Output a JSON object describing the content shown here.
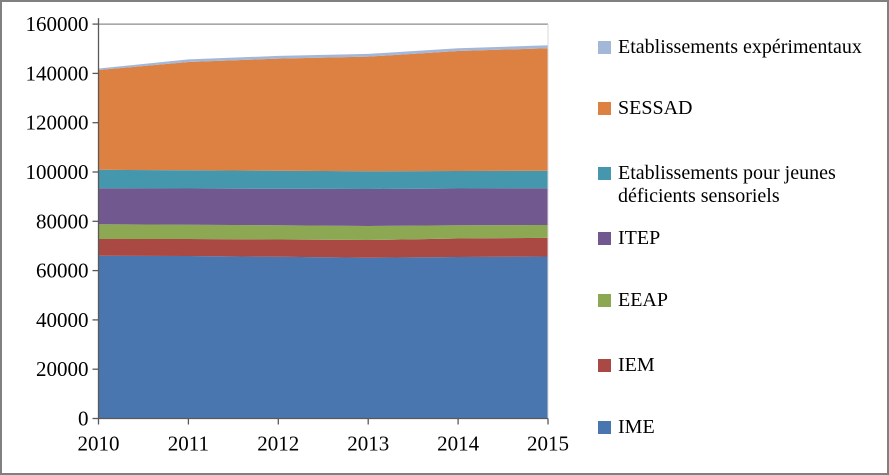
{
  "chart_data": {
    "type": "area",
    "stacked": true,
    "title": "",
    "xlabel": "",
    "ylabel": "",
    "x": [
      "2010",
      "2011",
      "2012",
      "2013",
      "2014",
      "2015"
    ],
    "yticks": [
      "0",
      "20000",
      "40000",
      "60000",
      "80000",
      "100000",
      "120000",
      "140000",
      "160000"
    ],
    "ylim": [
      0,
      160000
    ],
    "grid": false,
    "legend_position": "right",
    "series": [
      {
        "name": "IME",
        "color": "#4976AE",
        "values": [
          66000,
          65900,
          65600,
          65200,
          65500,
          65700
        ]
      },
      {
        "name": "IEM",
        "color": "#AA4844",
        "values": [
          6800,
          6900,
          7000,
          7200,
          7500,
          7600
        ]
      },
      {
        "name": "EEAP",
        "color": "#8DA852",
        "values": [
          6000,
          5800,
          5800,
          5700,
          5400,
          5200
        ]
      },
      {
        "name": "ITEP",
        "color": "#71588F",
        "values": [
          14600,
          14700,
          14800,
          15000,
          14900,
          14900
        ]
      },
      {
        "name": "Etablissements pour jeunes déficients sensoriels",
        "color": "#4497AD",
        "values": [
          7500,
          7400,
          7300,
          7200,
          7100,
          7100
        ]
      },
      {
        "name": "SESSAD",
        "color": "#DD8142",
        "values": [
          40500,
          43900,
          45500,
          46500,
          48700,
          49700
        ]
      },
      {
        "name": "Etablissements expérimentaux",
        "color": "#A3B8D9",
        "values": [
          600,
          1100,
          1100,
          1100,
          1100,
          1200
        ]
      }
    ],
    "colors": {
      "axis_line": "#595959",
      "plot_top_border": "#8C8C8C",
      "plot_right_border": "#D9D9D9",
      "frame_border": "#808080"
    }
  }
}
